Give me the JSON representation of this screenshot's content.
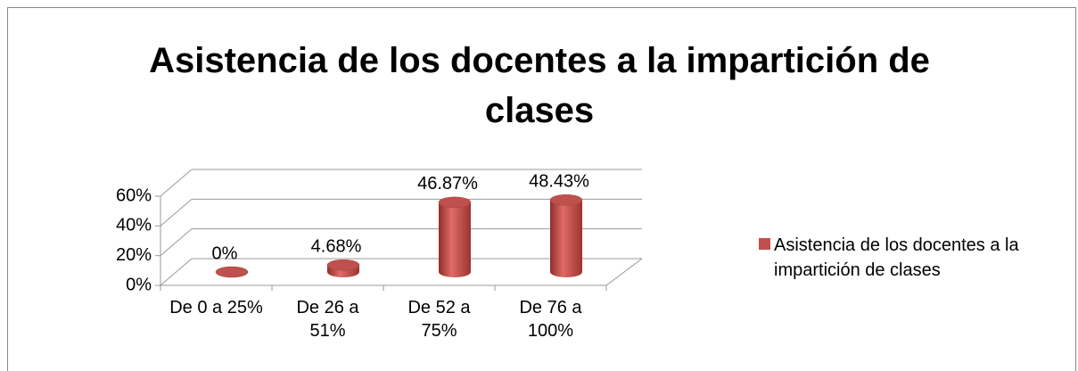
{
  "chart_data": {
    "type": "bar3d",
    "title": "Asistencia de los docentes a la impartición de clases",
    "categories": [
      "De 0 a 25%",
      "De 26 a 51%",
      "De 52 a 75%",
      "De 76 a 100%"
    ],
    "series": [
      {
        "name": "Asistencia de los docentes a la impartición de clases",
        "color": "#c0504d",
        "values": [
          0,
          4.68,
          46.87,
          48.43
        ],
        "value_labels": [
          "0%",
          "4.68%",
          "46.87%",
          "48.43%"
        ]
      }
    ],
    "ylim": [
      0,
      60
    ],
    "yticks": [
      {
        "value": 0,
        "label": "0%"
      },
      {
        "value": 20,
        "label": "20%"
      },
      {
        "value": 40,
        "label": "40%"
      },
      {
        "value": 60,
        "label": "60%"
      }
    ],
    "grid": true,
    "legend": "right"
  }
}
